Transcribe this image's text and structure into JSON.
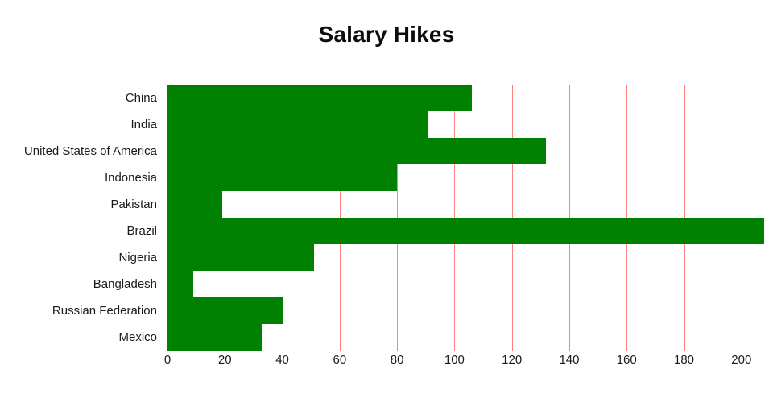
{
  "page": {
    "title": "Salary Hikes"
  },
  "chart_data": {
    "type": "bar",
    "orientation": "horizontal",
    "title": "Salary Hikes",
    "categories": [
      "China",
      "India",
      "United States of America",
      "Indonesia",
      "Pakistan",
      "Brazil",
      "Nigeria",
      "Bangladesh",
      "Russian Federation",
      "Mexico"
    ],
    "values": [
      106,
      91,
      132,
      80,
      19,
      208,
      51,
      9,
      40,
      33
    ],
    "xlabel": "",
    "ylabel": "",
    "xlim": [
      0,
      211
    ],
    "xticks": [
      0,
      20,
      40,
      60,
      80,
      100,
      120,
      140,
      160,
      180,
      200
    ],
    "grid": true,
    "legend": "none",
    "bar_color": "#008000",
    "grid_color": "#ff7f7f",
    "background": "#ffffff",
    "text_color": "#1a1a1a"
  }
}
